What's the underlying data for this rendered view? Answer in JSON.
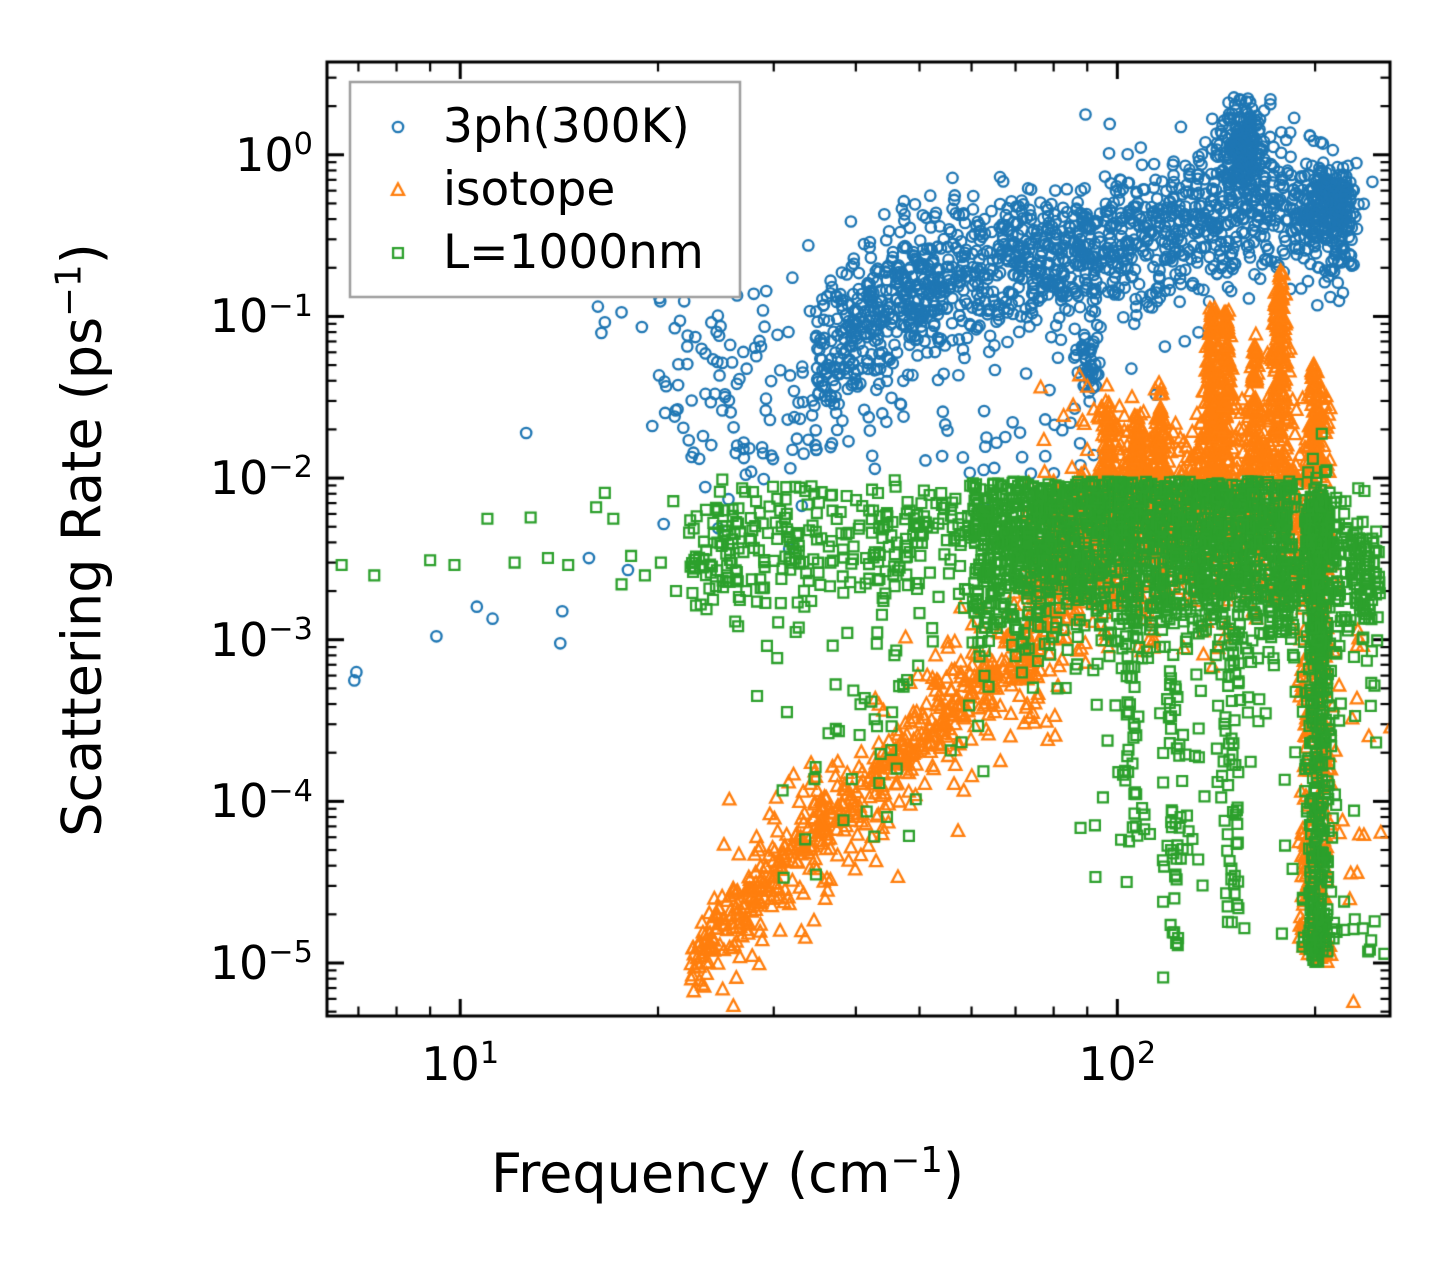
{
  "figure": {
    "background": "#ffffff",
    "axes_color": "#000000",
    "legend_border_color": "#9e9e9e",
    "legend_background": "#ffffff"
  },
  "chart_data": {
    "type": "scatter",
    "title": "",
    "xlabel": {
      "pre": "Frequency (cm",
      "sup": "−1",
      "post": ")"
    },
    "ylabel": {
      "pre": "Scattering Rate (ps",
      "sup": "−1",
      "post": ")"
    },
    "x_scale": "log",
    "y_scale": "log",
    "xlim": [
      6.27,
      260
    ],
    "ylim": [
      4.7e-06,
      3.75
    ],
    "grid": false,
    "tick_direction": "in",
    "x_major_ticks": [
      {
        "value": 10,
        "base": "10",
        "exp": "1"
      },
      {
        "value": 100,
        "base": "10",
        "exp": "2"
      }
    ],
    "y_major_ticks": [
      {
        "value": 1,
        "base": "10",
        "exp": "0"
      },
      {
        "value": 0.1,
        "base": "10",
        "exp": "−1"
      },
      {
        "value": 0.01,
        "base": "10",
        "exp": "−2"
      },
      {
        "value": 0.001,
        "base": "10",
        "exp": "−3"
      },
      {
        "value": 0.0001,
        "base": "10",
        "exp": "−4"
      },
      {
        "value": 1e-05,
        "base": "10",
        "exp": "−5"
      }
    ],
    "legend": {
      "position": "upper-left",
      "items": [
        {
          "label": "3ph(300K)",
          "marker": "circle",
          "color": "#1f77b4"
        },
        {
          "label": "isotope",
          "marker": "triangle",
          "color": "#ff7f0e"
        },
        {
          "label": "L=1000nm",
          "marker": "square",
          "color": "#2ca02c"
        }
      ]
    },
    "rng_seed": 1337,
    "series": [
      {
        "name": "3ph(300K)",
        "marker": "circle",
        "color": "#1f77b4",
        "features": [
          {
            "kind": "points",
            "pts": [
              [
                6.9,
                0.00056
              ],
              [
                6.95,
                0.00063
              ],
              [
                9.2,
                0.00105
              ],
              [
                10.6,
                0.0016
              ],
              [
                11.2,
                0.00135
              ],
              [
                12.6,
                0.019
              ],
              [
                14.2,
                0.00095
              ],
              [
                14.3,
                0.0015
              ],
              [
                15.7,
                0.0032
              ],
              [
                18.0,
                0.0027
              ],
              [
                20.4,
                0.0052
              ],
              [
                16.2,
                0.115
              ],
              [
                16.6,
                0.092
              ],
              [
                17.6,
                0.106
              ],
              [
                18.9,
                0.086
              ],
              [
                16.4,
                0.079
              ],
              [
                19.6,
                0.021
              ],
              [
                21.2,
                0.024
              ],
              [
                22.5,
                0.0135
              ],
              [
                23.6,
                0.0088
              ],
              [
                24.1,
                0.016
              ],
              [
                25.6,
                0.0074
              ],
              [
                27.2,
                0.0105
              ],
              [
                20.1,
                0.13
              ],
              [
                21.6,
                0.094
              ],
              [
                23.3,
                0.063
              ],
              [
                24.9,
                0.087
              ],
              [
                26.6,
                0.041
              ],
              [
                28.1,
                0.064
              ],
              [
                29.2,
                0.031
              ],
              [
                30.4,
                0.077
              ],
              [
                31.5,
                0.023
              ],
              [
                33.2,
                0.045
              ],
              [
                34.6,
                0.028
              ],
              [
                25.8,
                0.0255
              ],
              [
                28.8,
                0.0155
              ],
              [
                31.8,
                0.0115
              ],
              [
                35.2,
                0.062
              ],
              [
                36.4,
                0.094
              ],
              [
                37.8,
                0.044
              ]
            ]
          },
          {
            "kind": "band",
            "anchors": [
              [
                1.3,
                -1.35
              ],
              [
                1.42,
                -1.45
              ],
              [
                1.55,
                -1.5
              ]
            ],
            "sigma": 0.4,
            "count": 90
          },
          {
            "kind": "band",
            "anchors": [
              [
                1.54,
                -1.35
              ],
              [
                1.62,
                -1.0
              ],
              [
                1.72,
                -0.8
              ],
              [
                1.82,
                -0.7
              ],
              [
                1.92,
                -0.62
              ],
              [
                2.02,
                -0.55
              ],
              [
                2.1,
                -0.47
              ],
              [
                2.18,
                -0.36
              ],
              [
                2.24,
                -0.28
              ],
              [
                2.3,
                -0.4
              ],
              [
                2.36,
                -0.52
              ]
            ],
            "sigma": 0.24,
            "count": 1500,
            "clip_top": 0.4
          },
          {
            "kind": "cluster",
            "lx": 2.19,
            "ly": 0.05,
            "sx": 0.018,
            "sy": 0.15,
            "count": 200,
            "clip_top": 0.37
          },
          {
            "kind": "cluster",
            "lx": 2.325,
            "ly": -0.3,
            "sx": 0.02,
            "sy": 0.13,
            "count": 190
          },
          {
            "kind": "cluster",
            "lx": 1.955,
            "ly": -1.28,
            "sx": 0.01,
            "sy": 0.12,
            "count": 40
          },
          {
            "kind": "cluster",
            "lx": 1.8,
            "ly": -1.75,
            "sx": 0.12,
            "sy": 0.22,
            "count": 45
          }
        ]
      },
      {
        "name": "isotope",
        "marker": "triangle",
        "color": "#ff7f0e",
        "features": [
          {
            "kind": "band",
            "anchors": [
              [
                1.35,
                -4.97
              ],
              [
                1.5,
                -4.35
              ],
              [
                1.65,
                -3.8
              ],
              [
                1.78,
                -3.35
              ],
              [
                1.88,
                -3.0
              ]
            ],
            "sigma": 0.1,
            "count": 380
          },
          {
            "kind": "band",
            "anchors": [
              [
                1.38,
                -4.9
              ],
              [
                1.5,
                -4.35
              ],
              [
                1.65,
                -3.8
              ],
              [
                1.78,
                -3.35
              ],
              [
                1.88,
                -3.0
              ]
            ],
            "sigma": 0.28,
            "count": 260
          },
          {
            "kind": "band",
            "anchors": [
              [
                1.86,
                -2.85
              ],
              [
                1.94,
                -2.5
              ],
              [
                2.02,
                -2.3
              ],
              [
                2.1,
                -2.22
              ],
              [
                2.18,
                -2.18
              ],
              [
                2.26,
                -2.25
              ],
              [
                2.31,
                -2.35
              ]
            ],
            "sigma": 0.33,
            "count": 950,
            "clip_top": -1.45
          },
          {
            "kind": "band",
            "anchors": [
              [
                1.9,
                -2.3
              ],
              [
                1.98,
                -2.18
              ],
              [
                2.06,
                -2.12
              ]
            ],
            "sigma": 0.1,
            "count": 260
          },
          {
            "kind": "spike",
            "lx": 1.985,
            "base": -2.2,
            "peak": -1.55,
            "sx": 0.012,
            "count": 90
          },
          {
            "kind": "spike",
            "lx": 2.03,
            "base": -2.2,
            "peak": -1.62,
            "sx": 0.012,
            "count": 90
          },
          {
            "kind": "spike",
            "lx": 2.065,
            "base": -2.3,
            "peak": -1.45,
            "sx": 0.01,
            "count": 90
          },
          {
            "kind": "spike",
            "lx": 2.145,
            "base": -2.2,
            "peak": -0.95,
            "sx": 0.013,
            "count": 170
          },
          {
            "kind": "spike",
            "lx": 2.165,
            "base": -2.1,
            "peak": -1.0,
            "sx": 0.011,
            "count": 120
          },
          {
            "kind": "spike",
            "lx": 2.21,
            "base": -2.0,
            "peak": -1.15,
            "sx": 0.009,
            "count": 90
          },
          {
            "kind": "spike",
            "lx": 2.247,
            "base": -2.0,
            "peak": -0.73,
            "sx": 0.012,
            "count": 190
          },
          {
            "kind": "spike",
            "lx": 2.3,
            "base": -1.95,
            "peak": -1.28,
            "sx": 0.008,
            "count": 80
          },
          {
            "kind": "column",
            "lx": 2.312,
            "sx": 0.006,
            "ly0": -5.0,
            "ly1": -1.45,
            "count": 220
          },
          {
            "kind": "column",
            "lx": 2.288,
            "sx": 0.005,
            "ly0": -4.95,
            "ly1": -3.1,
            "count": 90
          },
          {
            "kind": "cluster",
            "lx": 2.355,
            "ly": -3.6,
            "sx": 0.025,
            "sy": 0.65,
            "count": 22
          },
          {
            "kind": "cluster",
            "lx": 1.96,
            "ly": -1.62,
            "sx": 0.05,
            "sy": 0.12,
            "count": 14
          }
        ]
      },
      {
        "name": "L=1000nm",
        "marker": "square",
        "color": "#2ca02c",
        "features": [
          {
            "kind": "points",
            "pts": [
              [
                6.6,
                0.0029
              ],
              [
                7.4,
                0.0025
              ],
              [
                9.0,
                0.0031
              ],
              [
                9.8,
                0.0029
              ],
              [
                11.0,
                0.0056
              ],
              [
                12.1,
                0.003
              ],
              [
                12.8,
                0.0057
              ],
              [
                13.6,
                0.0032
              ],
              [
                14.6,
                0.0029
              ],
              [
                16.1,
                0.0066
              ],
              [
                16.6,
                0.0081
              ],
              [
                17.1,
                0.0056
              ],
              [
                17.6,
                0.0022
              ],
              [
                18.2,
                0.0033
              ],
              [
                19.1,
                0.0025
              ],
              [
                20.2,
                0.003
              ],
              [
                21.1,
                0.0072
              ],
              [
                21.3,
                0.002
              ],
              [
                22.3,
                0.0046
              ],
              [
                23.4,
                0.0028
              ],
              [
                24.6,
                0.0064
              ],
              [
                25.4,
                0.0034
              ],
              [
                26.3,
                0.0023
              ],
              [
                27.7,
                0.0041
              ],
              [
                29.0,
                0.0021
              ],
              [
                30.2,
                0.0053
              ],
              [
                31.9,
                0.003
              ],
              [
                33.4,
                0.0016
              ],
              [
                35.1,
                0.0026
              ]
            ]
          },
          {
            "kind": "band",
            "anchors": [
              [
                1.35,
                -2.45
              ],
              [
                1.55,
                -2.4
              ],
              [
                1.78,
                -2.35
              ]
            ],
            "sigma": 0.22,
            "count": 300,
            "clip_top": -2.0
          },
          {
            "kind": "cluster",
            "lx": 1.63,
            "ly": -3.45,
            "sx": 0.09,
            "sy": 0.42,
            "count": 55
          },
          {
            "kind": "band",
            "anchors": [
              [
                1.78,
                -2.42
              ],
              [
                1.92,
                -2.38
              ],
              [
                2.05,
                -2.42
              ],
              [
                2.18,
                -2.42
              ],
              [
                2.27,
                -2.5
              ]
            ],
            "sigma": 0.32,
            "count": 1650,
            "clip_top": -2.02
          },
          {
            "kind": "column",
            "lx": 2.02,
            "sx": 0.007,
            "ly0": -4.25,
            "ly1": -2.6,
            "count": 50
          },
          {
            "kind": "column",
            "lx": 2.085,
            "sx": 0.006,
            "ly0": -4.95,
            "ly1": -2.8,
            "count": 42
          },
          {
            "kind": "column",
            "lx": 2.175,
            "sx": 0.007,
            "ly0": -4.75,
            "ly1": -2.7,
            "count": 50
          },
          {
            "kind": "cluster",
            "lx": 2.1,
            "ly": -3.85,
            "sx": 0.1,
            "sy": 0.5,
            "count": 70
          },
          {
            "kind": "column",
            "lx": 2.305,
            "sx": 0.011,
            "ly0": -5.0,
            "ly1": -2.1,
            "count": 420
          },
          {
            "kind": "cluster",
            "lx": 2.305,
            "ly": -2.4,
            "sx": 0.012,
            "sy": 0.22,
            "count": 180
          },
          {
            "kind": "band",
            "anchors": [
              [
                2.33,
                -2.55
              ],
              [
                2.4,
                -2.7
              ]
            ],
            "sigma": 0.28,
            "count": 130
          },
          {
            "kind": "cluster",
            "lx": 2.37,
            "ly": -4.82,
            "sx": 0.02,
            "sy": 0.12,
            "count": 10
          }
        ]
      }
    ]
  }
}
